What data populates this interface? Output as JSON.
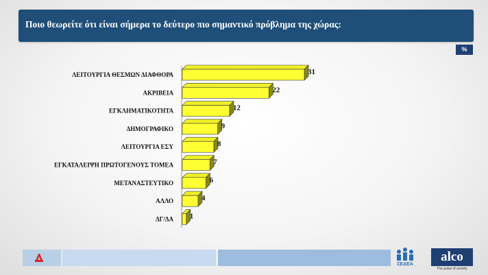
{
  "header": {
    "title": "Ποιο θεωρείτε ότι είναι σήμερα το δεύτερο πιο σημαντικό πρόβλημα της χώρας:"
  },
  "badge": {
    "label": "%"
  },
  "chart_data": {
    "type": "bar",
    "orientation": "horizontal",
    "title": "Ποιο θεωρείτε ότι είναι σήμερα το δεύτερο πιο σημαντικό πρόβλημα της χώρας:",
    "categories": [
      "ΛΕΙΤΟΥΡΓΙΑ ΘΕΣΜΩΝ  ΔΙΑΦΘΟΡΑ",
      "ΑΚΡΙΒΕΙΑ",
      "ΕΓΚΛΗΜΑΤΙΚΟΤΗΤΑ",
      "ΔΗΜΟΓΡΑΦΙΚΟ",
      "ΛΕΙΤΟΥΡΓΙΑ ΕΣΥ",
      "ΕΓΚΑΤΑΛΕΙΨΗ ΠΡΩΤΟΓΕΝΟΥΣ ΤΟΜΕΑ",
      "ΜΕΤΑΝΑΣΤΕΥΤΙΚΟ",
      "ΑΛΛΟ",
      "ΔΓ/ΔΑ"
    ],
    "values": [
      31,
      22,
      12,
      9,
      8,
      7,
      6,
      4,
      1
    ],
    "unit": "%",
    "bar_color": "#ffff33",
    "xlim": [
      0,
      31
    ],
    "grid": false,
    "legend": false
  },
  "footer": {
    "sedea_label": "ΣΕΔΕΑ",
    "alco_label": "alco",
    "alco_tagline": "The pulse of society"
  }
}
